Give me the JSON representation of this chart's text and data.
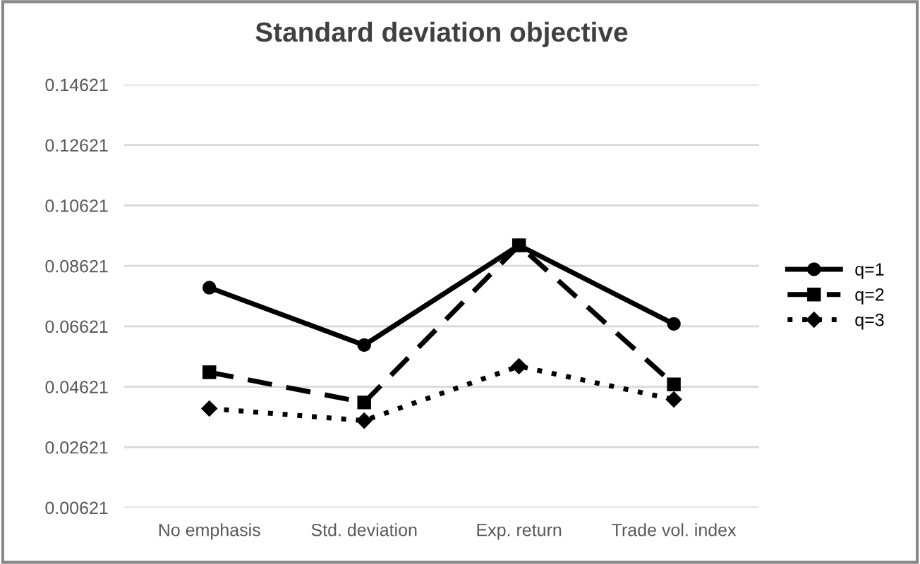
{
  "chart_data": {
    "type": "line",
    "title": "Standard deviation objective",
    "categories": [
      "No emphasis",
      "Std. deviation",
      "Exp. return",
      "Trade vol. index"
    ],
    "series": [
      {
        "name": "q=1",
        "color": "#000000",
        "values": [
          0.079,
          0.06,
          0.093,
          0.067
        ],
        "line_style": "solid",
        "marker": "circle"
      },
      {
        "name": "q=2",
        "color": "#000000",
        "values": [
          0.051,
          0.041,
          0.093,
          0.047
        ],
        "line_style": "dashed",
        "marker": "square"
      },
      {
        "name": "q=3",
        "color": "#000000",
        "values": [
          0.039,
          0.035,
          0.053,
          0.042
        ],
        "line_style": "dotted",
        "marker": "diamond"
      }
    ],
    "ylim": [
      0.00621,
      0.14621
    ],
    "yticks": [
      0.00621,
      0.02621,
      0.04621,
      0.06621,
      0.08621,
      0.10621,
      0.12621,
      0.14621
    ],
    "grid": "y",
    "legend": "right"
  }
}
